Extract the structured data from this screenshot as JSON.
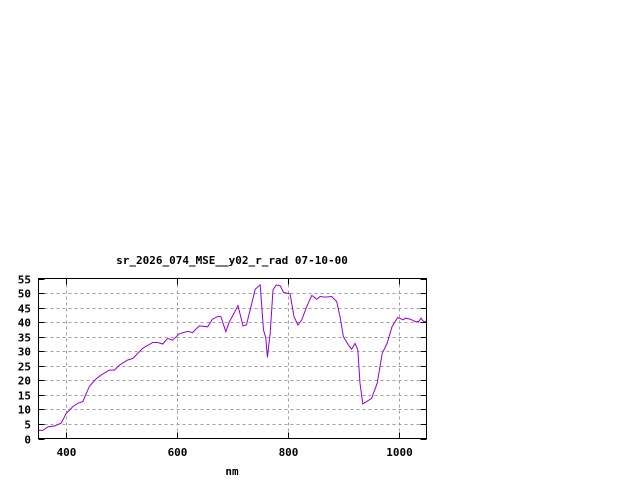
{
  "chart_data": {
    "type": "line",
    "title": "sr_2026_074_MSE__y02_r_rad 07-10-00",
    "xlabel": "nm",
    "ylabel": "",
    "xlim": [
      350,
      1050
    ],
    "ylim": [
      0,
      55
    ],
    "xticks": [
      400,
      600,
      800,
      1000
    ],
    "yticks": [
      0,
      5,
      10,
      15,
      20,
      25,
      30,
      35,
      40,
      45,
      50,
      55
    ],
    "grid": true,
    "line_color": "#9400d3",
    "series": [
      {
        "x": [
          350,
          358,
          367,
          379,
          391,
          400,
          412,
          421,
          430,
          442,
          454,
          463,
          478,
          487,
          496,
          511,
          520,
          538,
          556,
          565,
          574,
          583,
          592,
          604,
          619,
          628,
          640,
          655,
          664,
          673,
          679,
          688,
          694,
          698,
          710,
          719,
          725,
          731,
          741,
          750,
          756,
          760,
          763,
          768,
          773,
          779,
          786,
          792,
          804,
          811,
          818,
          825,
          834,
          843,
          852,
          858,
          867,
          879,
          888,
          894,
          900,
          909,
          915,
          921,
          926,
          930,
          935,
          942,
          951,
          961,
          970,
          979,
          988,
          998,
          1008,
          1012,
          1021,
          1030,
          1036,
          1040,
          1045,
          1050
        ],
        "y": [
          2.8,
          2.8,
          4,
          4.3,
          5.3,
          8.6,
          11,
          12.1,
          12.7,
          18,
          20.5,
          21.8,
          23.5,
          23.5,
          25.2,
          27,
          27.5,
          31,
          33,
          33,
          32.5,
          34.4,
          33.8,
          36,
          36.8,
          36.4,
          38.7,
          38.4,
          41,
          41.9,
          41.9,
          36.7,
          40,
          41.4,
          45.7,
          38.7,
          39,
          43.6,
          51.3,
          52.8,
          37.3,
          34.5,
          27.9,
          36.2,
          51.1,
          52.8,
          52.5,
          50.2,
          49.7,
          41.9,
          39,
          40.8,
          45.4,
          49.2,
          47.9,
          48.8,
          48.6,
          48.8,
          47.1,
          41.9,
          35,
          32.2,
          30.7,
          32.7,
          30.5,
          19,
          11.9,
          12.7,
          13.8,
          19,
          29.3,
          32.7,
          38.5,
          41.6,
          40.8,
          41.4,
          41,
          40.2,
          40.2,
          41.4,
          40.2,
          40.2
        ]
      }
    ]
  }
}
